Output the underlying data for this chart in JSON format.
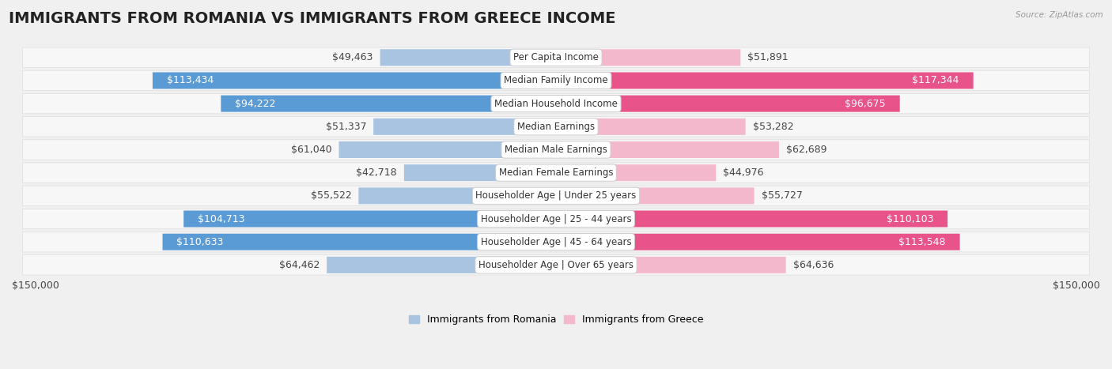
{
  "title": "IMMIGRANTS FROM ROMANIA VS IMMIGRANTS FROM GREECE INCOME",
  "source": "Source: ZipAtlas.com",
  "categories": [
    "Per Capita Income",
    "Median Family Income",
    "Median Household Income",
    "Median Earnings",
    "Median Male Earnings",
    "Median Female Earnings",
    "Householder Age | Under 25 years",
    "Householder Age | 25 - 44 years",
    "Householder Age | 45 - 64 years",
    "Householder Age | Over 65 years"
  ],
  "romania_values": [
    49463,
    113434,
    94222,
    51337,
    61040,
    42718,
    55522,
    104713,
    110633,
    64462
  ],
  "greece_values": [
    51891,
    117344,
    96675,
    53282,
    62689,
    44976,
    55727,
    110103,
    113548,
    64636
  ],
  "romania_labels": [
    "$49,463",
    "$113,434",
    "$94,222",
    "$51,337",
    "$61,040",
    "$42,718",
    "$55,522",
    "$104,713",
    "$110,633",
    "$64,462"
  ],
  "greece_labels": [
    "$51,891",
    "$117,344",
    "$96,675",
    "$53,282",
    "$62,689",
    "$44,976",
    "$55,727",
    "$110,103",
    "$113,548",
    "$64,636"
  ],
  "romania_color_light": "#a8c4e0",
  "romania_color_dark": "#5b9bd5",
  "greece_color_light": "#f4b8cc",
  "greece_color_dark": "#e8538a",
  "romania_dark_threshold": 80000,
  "greece_dark_threshold": 80000,
  "romania_legend": "Immigrants from Romania",
  "greece_legend": "Immigrants from Greece",
  "max_value": 150000,
  "background_color": "#f0f0f0",
  "row_bg_color": "#f7f7f7",
  "title_fontsize": 14,
  "label_fontsize": 9,
  "category_fontsize": 8.5,
  "axis_label": "$150,000"
}
